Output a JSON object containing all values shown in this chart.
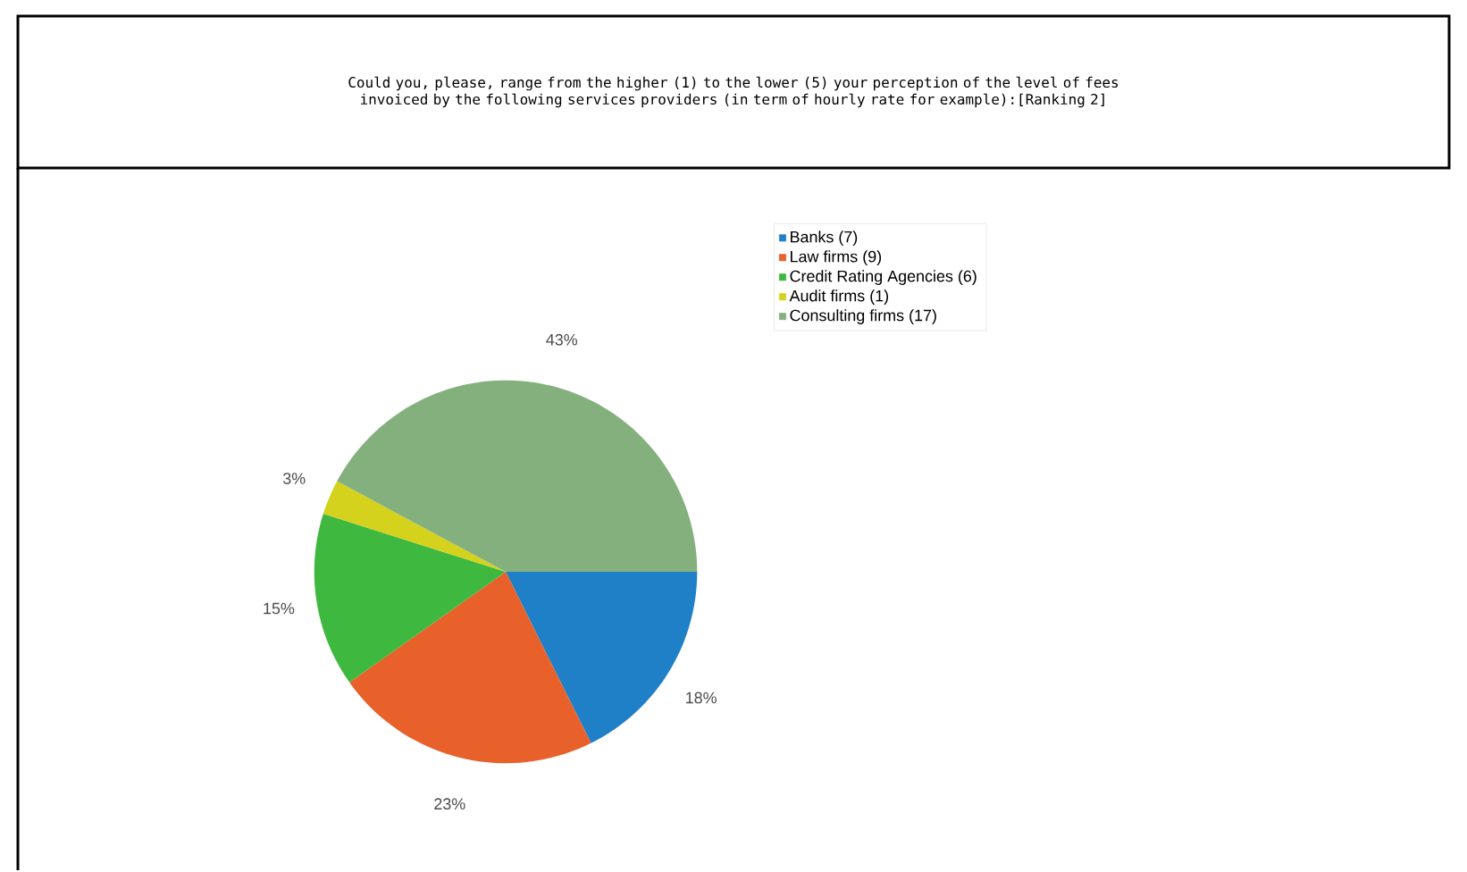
{
  "chart_data": {
    "type": "pie",
    "title": "Could you, please, range from the higher (1) to the lower (5) your perception of the level of fees invoiced by the following services providers (in term of hourly rate for example):[Ranking 2]",
    "categories": [
      "Banks (7)",
      "Law firms (9)",
      "Credit Rating Agencies (6)",
      "Audit firms (1)",
      "Consulting firms (17)"
    ],
    "values": [
      18,
      23,
      15,
      3,
      43
    ],
    "value_labels": [
      "18%",
      "23%",
      "15%",
      "3%",
      "43%"
    ],
    "colors": [
      "#1f80c8",
      "#e8602a",
      "#3fb840",
      "#d4d21c",
      "#84b07e"
    ],
    "legend": "top right"
  }
}
